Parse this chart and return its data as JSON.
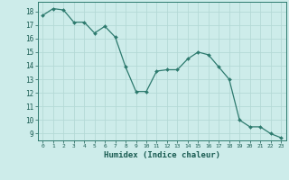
{
  "x": [
    0,
    1,
    2,
    3,
    4,
    5,
    6,
    7,
    8,
    9,
    10,
    11,
    12,
    13,
    14,
    15,
    16,
    17,
    18,
    19,
    20,
    21,
    22,
    23
  ],
  "y": [
    17.7,
    18.2,
    18.1,
    17.2,
    17.2,
    16.4,
    16.9,
    16.1,
    13.9,
    12.1,
    12.1,
    13.6,
    13.7,
    13.7,
    14.5,
    15.0,
    14.8,
    13.9,
    13.0,
    10.0,
    9.5,
    9.5,
    9.0,
    8.7
  ],
  "line_color": "#2d7a6e",
  "marker_color": "#2d7a6e",
  "bg_color": "#cdecea",
  "grid_color": "#b5d9d6",
  "axis_color": "#2d7a6e",
  "tick_color": "#1a5c52",
  "xlabel": "Humidex (Indice chaleur)",
  "ylim": [
    8.5,
    18.7
  ],
  "xlim": [
    -0.5,
    23.5
  ],
  "yticks": [
    9,
    10,
    11,
    12,
    13,
    14,
    15,
    16,
    17,
    18
  ],
  "xticks": [
    0,
    1,
    2,
    3,
    4,
    5,
    6,
    7,
    8,
    9,
    10,
    11,
    12,
    13,
    14,
    15,
    16,
    17,
    18,
    19,
    20,
    21,
    22,
    23
  ]
}
